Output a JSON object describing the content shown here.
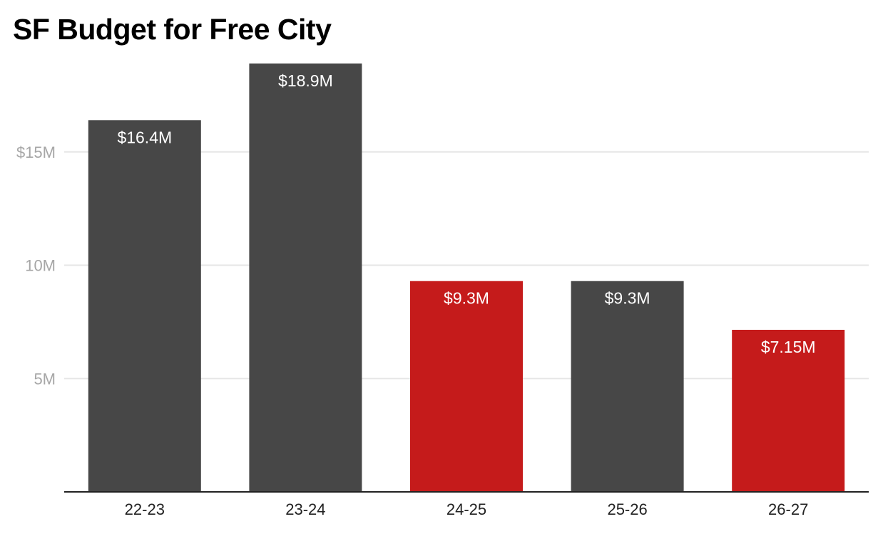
{
  "chart_data": {
    "type": "bar",
    "title": "SF Budget for Free City",
    "categories": [
      "22-23",
      "23-24",
      "24-25",
      "25-26",
      "26-27"
    ],
    "values": [
      16.4,
      18.9,
      9.3,
      9.3,
      7.15
    ],
    "data_labels": [
      "$16.4M",
      "$18.9M",
      "$9.3M",
      "$9.3M",
      "$7.15M"
    ],
    "bar_colors": [
      "#474747",
      "#474747",
      "#c51b1b",
      "#474747",
      "#c51b1b"
    ],
    "y_ticks": [
      {
        "value": 5,
        "label": "5M"
      },
      {
        "value": 10,
        "label": "10M"
      },
      {
        "value": 15,
        "label": "$15M"
      }
    ],
    "ylim": [
      0,
      20
    ],
    "xlabel": "",
    "ylabel": "",
    "grid": true,
    "legend": "none"
  }
}
